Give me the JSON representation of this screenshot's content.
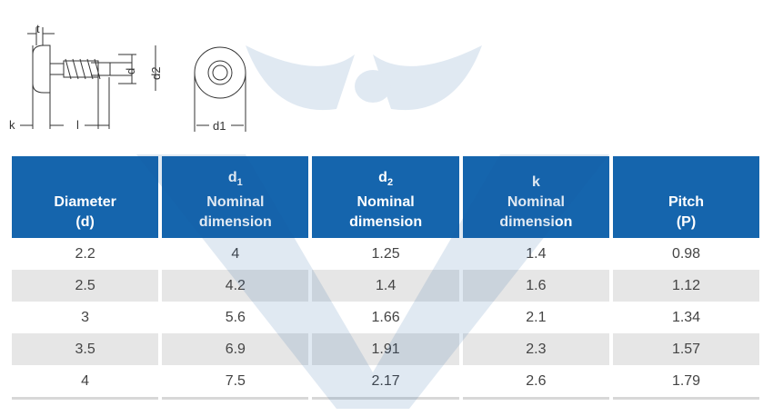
{
  "drawing": {
    "labels": {
      "t": "t",
      "k": "k",
      "l": "l",
      "d": "d",
      "d2": "d2",
      "d1": "d1"
    }
  },
  "table": {
    "headers": [
      {
        "sym": "",
        "sub": "",
        "line1": "Diameter",
        "line2": "(d)"
      },
      {
        "sym": "d",
        "sub": "1",
        "line1": "Nominal",
        "line2": "dimension"
      },
      {
        "sym": "d",
        "sub": "2",
        "line1": "Nominal",
        "line2": "dimension"
      },
      {
        "sym": "k",
        "sub": "",
        "line1": "Nominal",
        "line2": "dimension"
      },
      {
        "sym": "",
        "sub": "",
        "line1": "Pitch",
        "line2": "(P)"
      }
    ],
    "rows": [
      [
        "2.2",
        "4",
        "1.25",
        "1.4",
        "0.98"
      ],
      [
        "2.5",
        "4.2",
        "1.4",
        "1.6",
        "1.12"
      ],
      [
        "3",
        "5.6",
        "1.66",
        "2.1",
        "1.34"
      ],
      [
        "3.5",
        "6.9",
        "1.91",
        "2.3",
        "1.57"
      ],
      [
        "4",
        "7.5",
        "2.17",
        "2.6",
        "1.79"
      ]
    ]
  },
  "colors": {
    "header": "#1565ad",
    "alt_row": "#e6e6e6",
    "text": "#444444"
  }
}
